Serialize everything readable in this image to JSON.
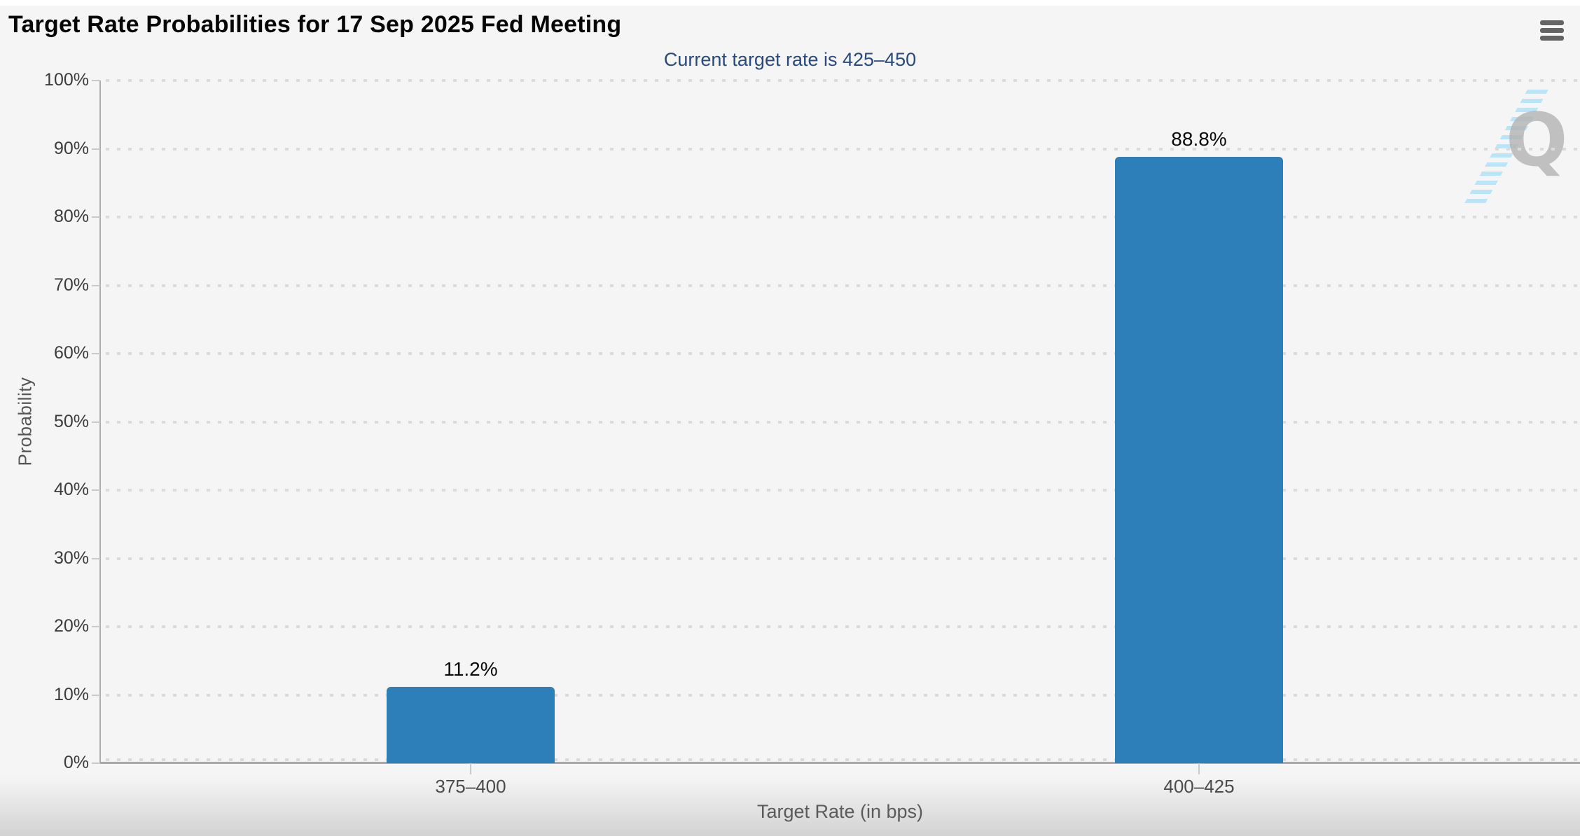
{
  "header": {
    "title": "Target Rate Probabilities for 17 Sep 2025 Fed Meeting"
  },
  "menu": {
    "icon": "hamburger-icon",
    "tooltip_label": "Chart context menu"
  },
  "watermark": {
    "letter": "Q",
    "bolt_color": "#b4e2f8",
    "letter_color": "#b3b3b3"
  },
  "colors": {
    "background": "#f5f5f6",
    "bar": "#2d7fba",
    "subtitle": "#2a4a7b",
    "title": "#060606",
    "gridline": "#dbdbdb",
    "axis_line": "#a8a8a8"
  },
  "chart_data": {
    "type": "bar",
    "title": "Target Rate Probabilities for 17 Sep 2025 Fed Meeting",
    "subtitle": "Current target rate is 425–450",
    "categories": [
      "375–400",
      "400–425"
    ],
    "values": [
      11.2,
      88.8
    ],
    "bar_labels": [
      "11.2%",
      "88.8%"
    ],
    "series": [
      {
        "name": "Probability",
        "values": [
          11.2,
          88.8
        ]
      }
    ],
    "xlabel": "Target Rate (in bps)",
    "ylabel": "Probability",
    "ylim": [
      0,
      100
    ],
    "y_ticks": [
      100,
      90,
      80,
      70,
      60,
      50,
      40,
      30,
      20,
      10,
      0
    ],
    "y_tick_labels": [
      "100%",
      "90%",
      "80%",
      "70%",
      "60%",
      "50%",
      "40%",
      "30%",
      "20%",
      "10%",
      "0%"
    ],
    "grid": "horizontal-dotted",
    "legend_position": "none",
    "bar_color": "#2d7fba"
  }
}
